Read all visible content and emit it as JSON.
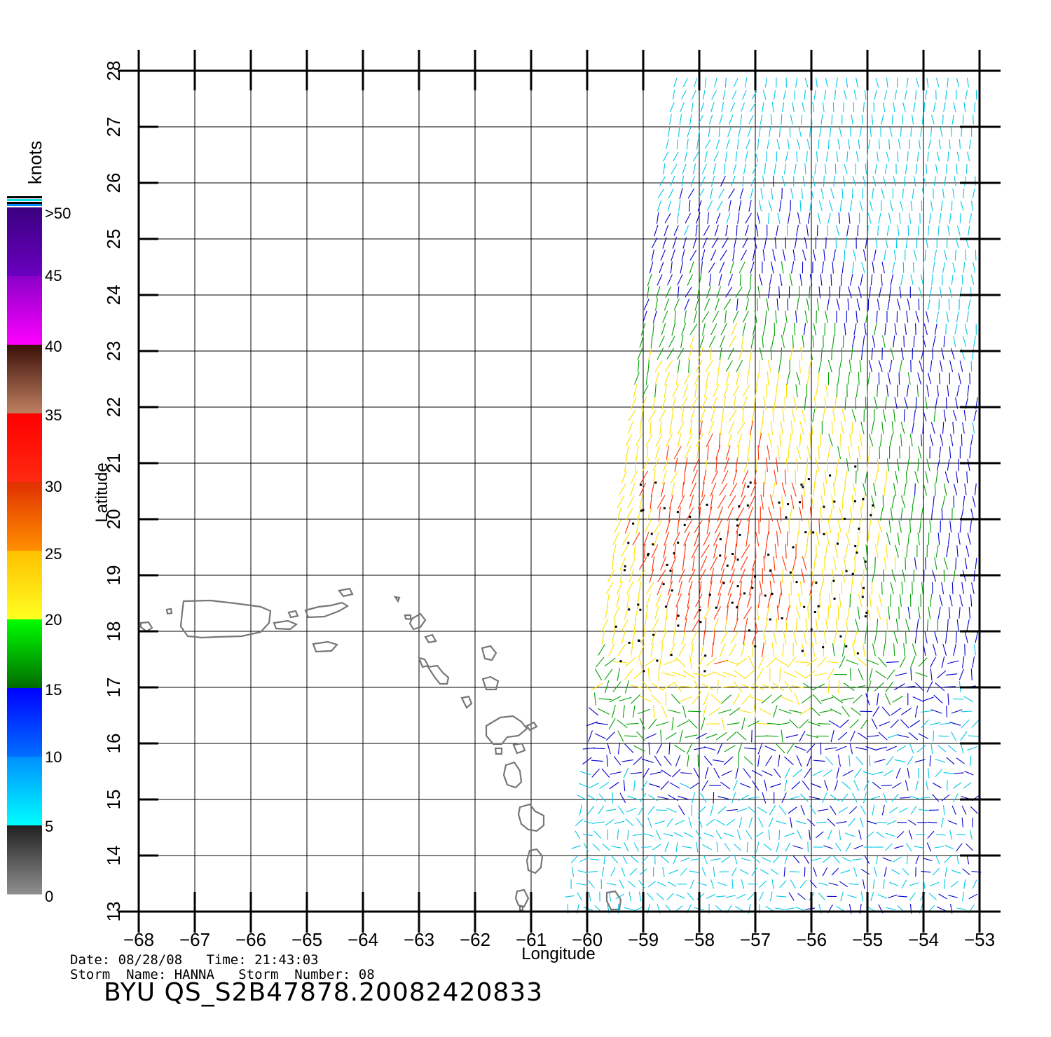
{
  "map": {
    "lon_ticks": [
      "−68",
      "−67",
      "−66",
      "−65",
      "−64",
      "−63",
      "−62",
      "−61",
      "−60",
      "−59",
      "−58",
      "−57",
      "−56",
      "−55",
      "−54",
      "−53"
    ],
    "lat_ticks": [
      "13",
      "14",
      "15",
      "16",
      "17",
      "18",
      "19",
      "20",
      "21",
      "22",
      "23",
      "24",
      "25",
      "26",
      "27",
      "28"
    ],
    "lon_range": [
      -68,
      -53
    ],
    "lat_range": [
      13,
      28
    ],
    "xlabel": "Longitude",
    "ylabel": "Latitude"
  },
  "legend": {
    "unit": "knots",
    "labels": [
      ">50",
      "45",
      "40",
      "35",
      "30",
      "25",
      "20",
      "15",
      "10",
      "5",
      "0"
    ],
    "bands": [
      {
        "from": 50,
        "color_top": "#3a0080",
        "color_bottom": "#6a00c0"
      },
      {
        "from": 40,
        "color_top": "#8a00c8",
        "color_bottom": "#ff00ff"
      },
      {
        "from": 35,
        "color_top": "#3a1008",
        "color_bottom": "#c08060"
      },
      {
        "from": 30,
        "color_top": "#ff0000",
        "color_bottom": "#ff2a10"
      },
      {
        "from": 25,
        "color_top": "#e03000",
        "color_bottom": "#ff9000"
      },
      {
        "from": 20,
        "color_top": "#ffc000",
        "color_bottom": "#ffff20"
      },
      {
        "from": 15,
        "color_top": "#00ff00",
        "color_bottom": "#006a00"
      },
      {
        "from": 10,
        "color_top": "#0000ff",
        "color_bottom": "#0070ff"
      },
      {
        "from": 5,
        "color_top": "#0090ff",
        "color_bottom": "#00ffff"
      },
      {
        "from": 0,
        "color_top": "#202020",
        "color_bottom": "#909090"
      }
    ]
  },
  "info": {
    "date_line": "Date: 08/28/08   Time: 21:43:03",
    "storm_line": "Storm  Name: HANNA   Storm  Number: 08",
    "product_id": "BYU  QS_S2B47878.20082420833"
  },
  "colors": {
    "calm": "#0000cc",
    "light": "#00c8e8",
    "moderate": "#00a000",
    "fresh": "#ffe000",
    "strong": "#ff3000",
    "gale": "#b000c0",
    "land_outline": "#777777",
    "rain_flag": "#000000"
  }
}
